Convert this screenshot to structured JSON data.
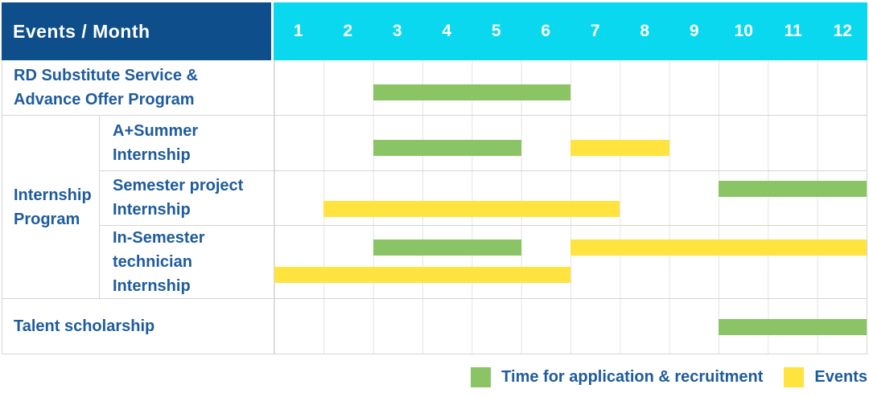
{
  "header": {
    "title": "Events / Month",
    "months": [
      "1",
      "2",
      "3",
      "4",
      "5",
      "6",
      "7",
      "8",
      "9",
      "10",
      "11",
      "12"
    ]
  },
  "group": {
    "label": "Internship\nProgram"
  },
  "rows": [
    {
      "label": "RD Substitute Service &\nAdvance Offer Program",
      "bars": [
        {
          "type": "recruitment",
          "start": 2,
          "end": 6,
          "lane": "midlow"
        }
      ]
    },
    {
      "label": "A+Summer\nInternship",
      "bars": [
        {
          "type": "recruitment",
          "start": 2,
          "end": 5,
          "lane": "midlow"
        },
        {
          "type": "event",
          "start": 6,
          "end": 8,
          "lane": "midlow"
        }
      ]
    },
    {
      "label": "Semester project\nInternship",
      "bars": [
        {
          "type": "recruitment",
          "start": 9,
          "end": 12,
          "lane": "upper"
        },
        {
          "type": "event",
          "start": 1,
          "end": 7,
          "lane": "lower"
        }
      ]
    },
    {
      "label": "In-Semester\ntechnician Internship",
      "bars": [
        {
          "type": "recruitment",
          "start": 2,
          "end": 5,
          "lane": "upper"
        },
        {
          "type": "event",
          "start": 6,
          "end": 12,
          "lane": "upper"
        },
        {
          "type": "event",
          "start": 0,
          "end": 6,
          "lane": "lower"
        }
      ]
    },
    {
      "label": "Talent scholarship",
      "bars": [
        {
          "type": "recruitment",
          "start": 9,
          "end": 12,
          "lane": "center"
        }
      ]
    }
  ],
  "legend": {
    "items": [
      {
        "type": "recruitment",
        "label": "Time for application & recruitment"
      },
      {
        "type": "event",
        "label": "Events"
      }
    ]
  },
  "colors": {
    "navy": "#0d4e8b",
    "cyan": "#0ad8ee",
    "green": "#8bc464",
    "yellow": "#ffe33e",
    "text": "#1e5b9e",
    "line": "#d6d6d6",
    "grid": "#e3e3e3"
  },
  "chart_data": {
    "type": "gantt",
    "title": "Events / Month",
    "x_axis": {
      "label": "Month",
      "ticks": [
        1,
        2,
        3,
        4,
        5,
        6,
        7,
        8,
        9,
        10,
        11,
        12
      ],
      "range": [
        1,
        12
      ]
    },
    "legend": [
      "Time for application & recruitment",
      "Events"
    ],
    "tasks": [
      {
        "row": "RD Substitute Service & Advance Offer Program",
        "bars": [
          {
            "kind": "Time for application & recruitment",
            "months": [
              3,
              6
            ]
          }
        ]
      },
      {
        "row": "A+Summer Internship",
        "group": "Internship Program",
        "bars": [
          {
            "kind": "Time for application & recruitment",
            "months": [
              3,
              5
            ]
          },
          {
            "kind": "Events",
            "months": [
              7,
              8
            ]
          }
        ]
      },
      {
        "row": "Semester project Internship",
        "group": "Internship Program",
        "bars": [
          {
            "kind": "Time for application & recruitment",
            "months": [
              10,
              12
            ]
          },
          {
            "kind": "Events",
            "months": [
              2,
              7
            ]
          }
        ]
      },
      {
        "row": "In-Semester technician Internship",
        "group": "Internship Program",
        "bars": [
          {
            "kind": "Time for application & recruitment",
            "months": [
              3,
              5
            ]
          },
          {
            "kind": "Events",
            "months": [
              7,
              12
            ]
          },
          {
            "kind": "Events",
            "months": [
              1,
              6
            ]
          }
        ]
      },
      {
        "row": "Talent scholarship",
        "bars": [
          {
            "kind": "Time for application & recruitment",
            "months": [
              10,
              12
            ]
          }
        ]
      }
    ]
  }
}
